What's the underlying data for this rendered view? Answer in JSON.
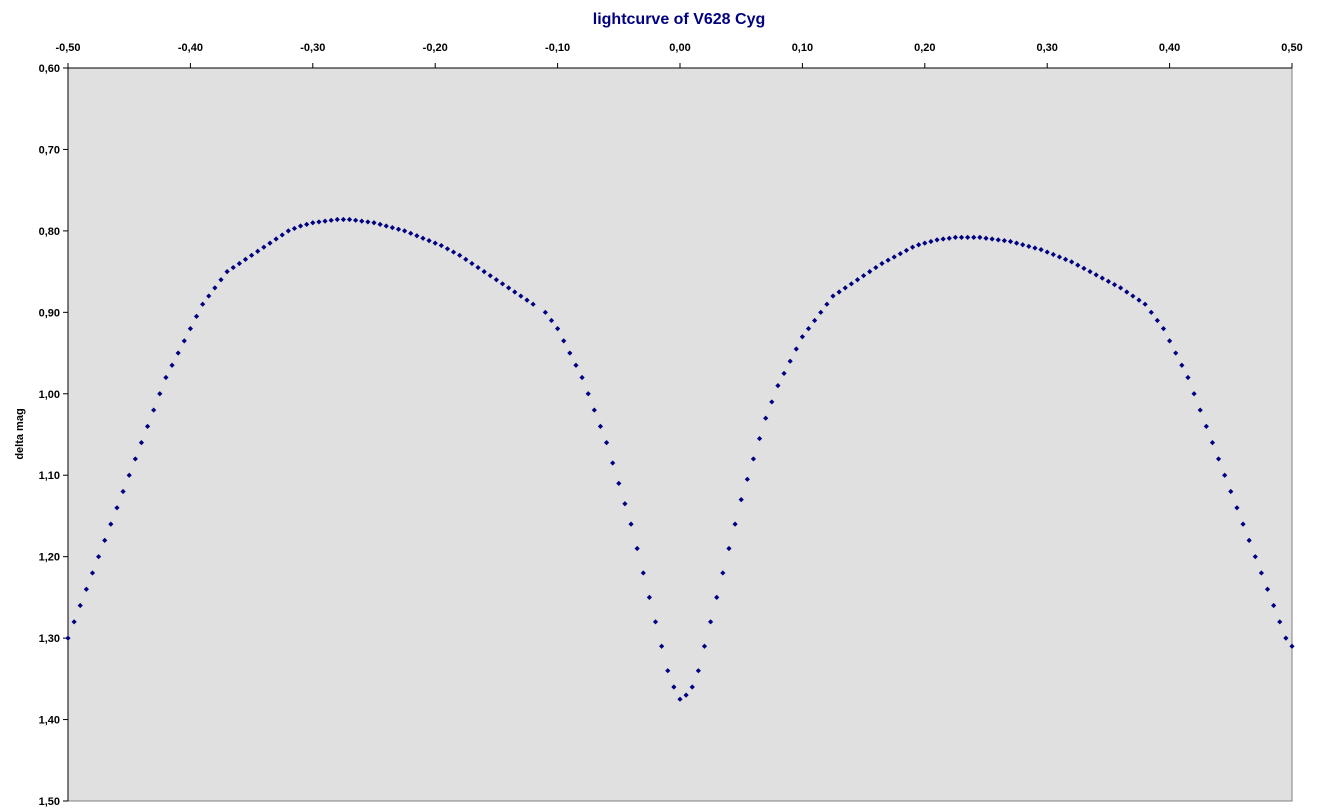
{
  "chart_data": {
    "type": "scatter",
    "title": "lightcurve of V628 Cyg",
    "xlabel": "",
    "ylabel": "delta mag",
    "xlim": [
      -0.5,
      0.5
    ],
    "ylim": [
      0.6,
      1.5
    ],
    "y_inverted": true,
    "x_axis_position": "top",
    "x_ticks": [
      "-0,50",
      "-0,40",
      "-0,30",
      "-0,20",
      "-0,10",
      "0,00",
      "0,10",
      "0,20",
      "0,30",
      "0,40",
      "0,50"
    ],
    "y_ticks": [
      "0,60",
      "0,70",
      "0,80",
      "0,90",
      "1,00",
      "1,10",
      "1,20",
      "1,30",
      "1,40",
      "1,50"
    ],
    "grid": false,
    "plot_background": "#e0e0e0",
    "marker_color": "#000080",
    "marker": "diamond",
    "series": [
      {
        "name": "",
        "x": [
          -0.5,
          -0.495,
          -0.49,
          -0.485,
          -0.48,
          -0.475,
          -0.47,
          -0.465,
          -0.46,
          -0.455,
          -0.45,
          -0.445,
          -0.44,
          -0.435,
          -0.43,
          -0.425,
          -0.42,
          -0.415,
          -0.41,
          -0.405,
          -0.4,
          -0.395,
          -0.39,
          -0.385,
          -0.38,
          -0.375,
          -0.37,
          -0.365,
          -0.36,
          -0.355,
          -0.35,
          -0.345,
          -0.34,
          -0.335,
          -0.33,
          -0.325,
          -0.32,
          -0.315,
          -0.31,
          -0.305,
          -0.3,
          -0.295,
          -0.29,
          -0.285,
          -0.28,
          -0.275,
          -0.27,
          -0.265,
          -0.26,
          -0.255,
          -0.25,
          -0.245,
          -0.24,
          -0.235,
          -0.23,
          -0.225,
          -0.22,
          -0.215,
          -0.21,
          -0.205,
          -0.2,
          -0.195,
          -0.19,
          -0.185,
          -0.18,
          -0.175,
          -0.17,
          -0.165,
          -0.16,
          -0.155,
          -0.15,
          -0.145,
          -0.14,
          -0.135,
          -0.13,
          -0.125,
          -0.12,
          -0.11,
          -0.105,
          -0.1,
          -0.095,
          -0.09,
          -0.085,
          -0.08,
          -0.075,
          -0.07,
          -0.065,
          -0.06,
          -0.055,
          -0.05,
          -0.045,
          -0.04,
          -0.035,
          -0.03,
          -0.025,
          -0.02,
          -0.015,
          -0.01,
          -0.005,
          0.0,
          0.005,
          0.01,
          0.015,
          0.02,
          0.025,
          0.03,
          0.035,
          0.04,
          0.045,
          0.05,
          0.055,
          0.06,
          0.065,
          0.07,
          0.075,
          0.08,
          0.085,
          0.09,
          0.095,
          0.1,
          0.105,
          0.11,
          0.115,
          0.12,
          0.125,
          0.13,
          0.135,
          0.14,
          0.145,
          0.15,
          0.155,
          0.16,
          0.165,
          0.17,
          0.175,
          0.18,
          0.185,
          0.19,
          0.195,
          0.2,
          0.205,
          0.21,
          0.215,
          0.22,
          0.225,
          0.23,
          0.235,
          0.24,
          0.245,
          0.25,
          0.255,
          0.26,
          0.265,
          0.27,
          0.275,
          0.28,
          0.285,
          0.29,
          0.295,
          0.3,
          0.305,
          0.31,
          0.315,
          0.32,
          0.325,
          0.33,
          0.335,
          0.34,
          0.345,
          0.35,
          0.355,
          0.36,
          0.365,
          0.37,
          0.375,
          0.38,
          0.385,
          0.39,
          0.395,
          0.4,
          0.405,
          0.41,
          0.415,
          0.42,
          0.425,
          0.43,
          0.435,
          0.44,
          0.445,
          0.45,
          0.455,
          0.46,
          0.465,
          0.47,
          0.475,
          0.48,
          0.485,
          0.49,
          0.495,
          0.5
        ],
        "y": [
          1.3,
          1.28,
          1.26,
          1.24,
          1.22,
          1.2,
          1.18,
          1.16,
          1.14,
          1.12,
          1.1,
          1.08,
          1.06,
          1.04,
          1.02,
          1.0,
          0.98,
          0.965,
          0.95,
          0.935,
          0.92,
          0.905,
          0.89,
          0.88,
          0.87,
          0.86,
          0.85,
          0.845,
          0.84,
          0.835,
          0.83,
          0.825,
          0.82,
          0.815,
          0.81,
          0.805,
          0.8,
          0.797,
          0.794,
          0.792,
          0.79,
          0.789,
          0.788,
          0.787,
          0.786,
          0.786,
          0.786,
          0.787,
          0.788,
          0.789,
          0.79,
          0.792,
          0.794,
          0.796,
          0.798,
          0.8,
          0.803,
          0.806,
          0.809,
          0.812,
          0.815,
          0.818,
          0.822,
          0.826,
          0.83,
          0.835,
          0.84,
          0.845,
          0.85,
          0.855,
          0.86,
          0.865,
          0.87,
          0.875,
          0.88,
          0.885,
          0.89,
          0.9,
          0.91,
          0.92,
          0.935,
          0.95,
          0.965,
          0.98,
          1.0,
          1.02,
          1.04,
          1.06,
          1.085,
          1.11,
          1.135,
          1.16,
          1.19,
          1.22,
          1.25,
          1.28,
          1.31,
          1.34,
          1.36,
          1.375,
          1.37,
          1.36,
          1.34,
          1.31,
          1.28,
          1.25,
          1.22,
          1.19,
          1.16,
          1.13,
          1.105,
          1.08,
          1.055,
          1.03,
          1.01,
          0.99,
          0.975,
          0.96,
          0.945,
          0.93,
          0.92,
          0.91,
          0.9,
          0.89,
          0.88,
          0.875,
          0.87,
          0.865,
          0.86,
          0.855,
          0.85,
          0.845,
          0.84,
          0.836,
          0.832,
          0.828,
          0.824,
          0.82,
          0.817,
          0.815,
          0.813,
          0.811,
          0.81,
          0.809,
          0.808,
          0.808,
          0.808,
          0.808,
          0.808,
          0.809,
          0.81,
          0.811,
          0.812,
          0.813,
          0.815,
          0.817,
          0.819,
          0.821,
          0.823,
          0.826,
          0.829,
          0.832,
          0.835,
          0.838,
          0.842,
          0.846,
          0.85,
          0.854,
          0.858,
          0.862,
          0.866,
          0.87,
          0.875,
          0.88,
          0.885,
          0.89,
          0.9,
          0.91,
          0.92,
          0.935,
          0.95,
          0.965,
          0.98,
          1.0,
          1.02,
          1.04,
          1.06,
          1.08,
          1.1,
          1.12,
          1.14,
          1.16,
          1.18,
          1.2,
          1.22,
          1.24,
          1.26,
          1.28,
          1.3,
          1.31
        ]
      }
    ]
  }
}
